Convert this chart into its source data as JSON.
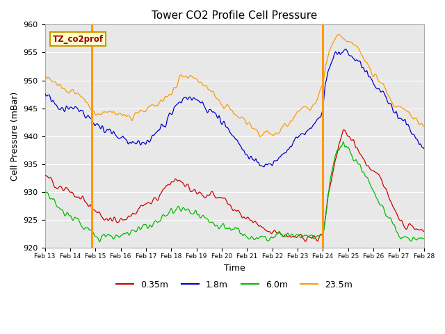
{
  "title": "Tower CO2 Profile Cell Pressure",
  "xlabel": "Time",
  "ylabel": "Cell Pressure (mBar)",
  "ylim": [
    920,
    960
  ],
  "xlim_days": [
    13,
    28
  ],
  "legend_label": "TZ_co2prof",
  "line_colors": {
    "0.35m": "#cc0000",
    "1.8m": "#0000cc",
    "6.0m": "#00bb00",
    "23.5m": "#ff9900"
  },
  "vline_days": [
    14.85,
    24.0
  ],
  "vline_color": "#ff9900",
  "bg_color": "#e8e8e8",
  "fig_bg": "#ffffff",
  "tick_labels": [
    "Feb 13",
    "Feb 14",
    "Feb 15",
    "Feb 16",
    "Feb 17",
    "Feb 18",
    "Feb 19",
    "Feb 20",
    "Feb 21",
    "Feb 22",
    "Feb 23",
    "Feb 24",
    "Feb 25",
    "Feb 26",
    "Feb 27",
    "Feb 28"
  ],
  "tick_positions": [
    13,
    14,
    15,
    16,
    17,
    18,
    19,
    20,
    21,
    22,
    23,
    24,
    25,
    26,
    27,
    28
  ],
  "legend_entries": [
    "0.35m",
    "1.8m",
    "6.0m",
    "23.5m"
  ]
}
